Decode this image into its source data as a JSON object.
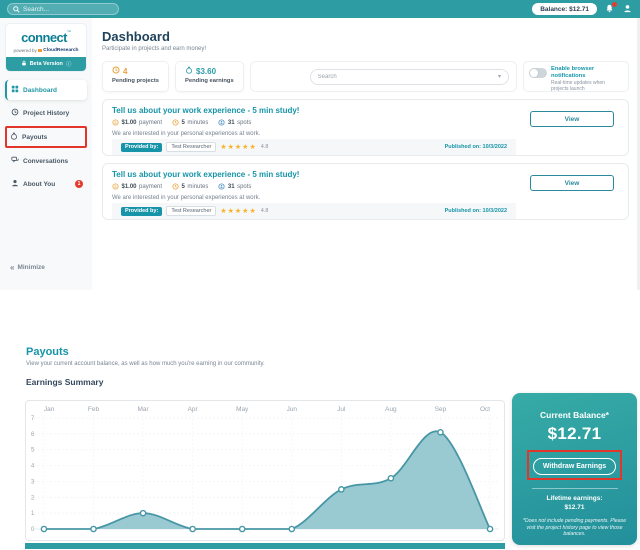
{
  "topbar": {
    "search_placeholder": "Search...",
    "balance_label": "Balance: $12.71"
  },
  "sidebar": {
    "logo_text": "connect",
    "logo_tm": "™",
    "powered_by": "powered by",
    "brand": "CloudResearch",
    "beta_badge": "Beta Version",
    "beta_info": "ⓘ",
    "items": [
      {
        "label": "Dashboard"
      },
      {
        "label": "Project History"
      },
      {
        "label": "Payouts"
      },
      {
        "label": "Conversations"
      },
      {
        "label": "About You",
        "badge": "1"
      }
    ],
    "minimize_label": "Minimize",
    "minimize_glyph": "«"
  },
  "dashboard": {
    "title": "Dashboard",
    "subtitle": "Participate in projects and earn money!",
    "stats": [
      {
        "value": "4",
        "label": "Pending projects"
      },
      {
        "value": "$3.60",
        "label": "Pending earnings"
      }
    ],
    "search_placeholder": "Search",
    "chevron": "▾",
    "notifications": {
      "title": "Enable browser notifications",
      "subtitle": "Real-time updates when projects launch"
    },
    "projects": [
      {
        "title": "Tell us about your work experience - 5 min study!",
        "payment_value": "$1.00",
        "payment_label": "payment",
        "duration_value": "5",
        "duration_label": "minutes",
        "spots_value": "31",
        "spots_label": "spots",
        "description": "We are interested in your personal experiences at work.",
        "provided_by": "Provided by:",
        "researcher": "Test Researcher",
        "stars": "★★★★★",
        "rating": "4.8",
        "published": "Published on: 10/3/2022",
        "view_label": "View"
      },
      {
        "title": "Tell us about your work experience - 5 min study!",
        "payment_value": "$1.00",
        "payment_label": "payment",
        "duration_value": "5",
        "duration_label": "minutes",
        "spots_value": "31",
        "spots_label": "spots",
        "description": "We are interested in your personal experiences at work.",
        "provided_by": "Provided by:",
        "researcher": "Test Researcher",
        "stars": "★★★★★",
        "rating": "4.8",
        "published": "Published on: 10/3/2022",
        "view_label": "View"
      }
    ]
  },
  "payouts": {
    "title": "Payouts",
    "subtitle": "View your current account balance, as well as how much you're earning in our community.",
    "summary_title": "Earnings Summary",
    "balance_card": {
      "title": "Current Balance*",
      "amount": "$12.71",
      "withdraw_label": "Withdraw Earnings",
      "lifetime_label": "Lifetime earnings:",
      "lifetime_amount": "$12.71",
      "footnote": "*Does not include pending payments. Please visit the project history page to view those balances."
    }
  },
  "chart_data": {
    "type": "area",
    "title": "Earnings Summary",
    "categories": [
      "Jan",
      "Feb",
      "Mar",
      "Apr",
      "May",
      "Jun",
      "Jul",
      "Aug",
      "Sep",
      "Oct"
    ],
    "values": [
      0,
      0,
      1,
      0,
      0,
      0,
      2.5,
      3.2,
      6.1,
      0
    ],
    "xlabel": "",
    "ylabel": "",
    "ylim": [
      0,
      7
    ],
    "yticks": [
      0,
      1,
      2,
      3,
      4,
      5,
      6,
      7
    ],
    "grid": true,
    "legend": false,
    "line_color": "#4796a5",
    "fill_color": "#8ec4cd"
  },
  "colors": {
    "teal": "#2d9da3",
    "teal_link": "#1794a8",
    "heading_navy": "#21445c",
    "orange": "#e9a13b",
    "star_yellow": "#f7b32b",
    "annotation_red": "#e2362b",
    "chart_line": "#4796a5",
    "chart_fill": "#8ec4cd"
  }
}
